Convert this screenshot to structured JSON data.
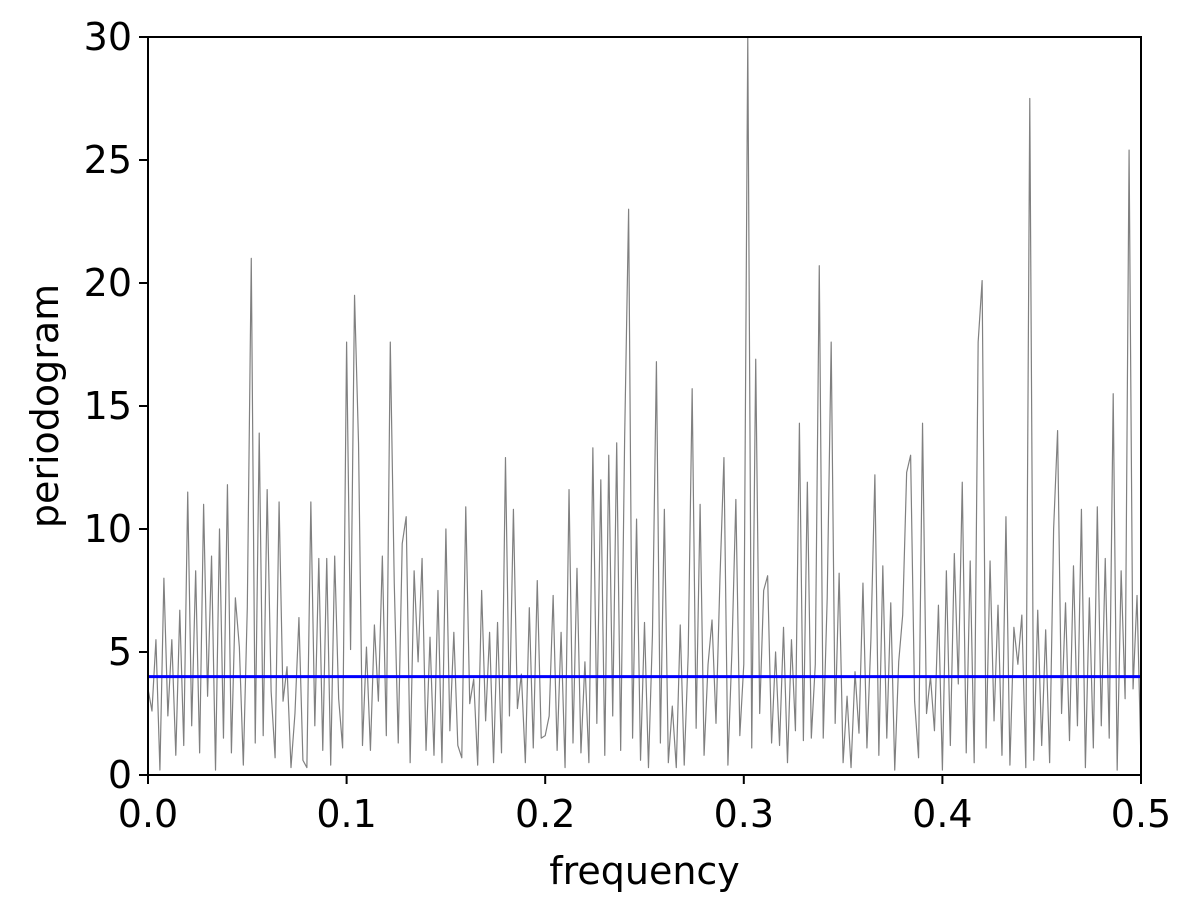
{
  "chart_data": {
    "type": "line",
    "x_label": "frequency",
    "y_label": "periodogram",
    "xlim": [
      0,
      0.5
    ],
    "ylim": [
      0,
      30
    ],
    "xticks": [
      {
        "value": 0,
        "label": "0.0"
      },
      0.1,
      0.2,
      0.3,
      0.4,
      0.5
    ],
    "yticks": [
      0,
      5,
      10,
      15,
      20,
      25,
      30
    ],
    "hline": {
      "value": 4,
      "color": "#0000ff"
    },
    "series": [
      {
        "color": "#808080",
        "x": [
          0,
          0.002,
          0.004,
          0.006,
          0.008,
          0.01,
          0.012,
          0.014,
          0.016,
          0.018,
          0.02,
          0.022,
          0.024,
          0.026,
          0.028,
          0.03,
          0.032,
          0.034,
          0.036,
          0.038,
          0.04,
          0.042,
          0.044,
          0.046,
          0.048,
          0.05,
          0.052,
          0.054,
          0.056,
          0.058,
          0.06,
          0.062,
          0.064,
          0.066,
          0.068,
          0.07,
          0.072,
          0.074,
          0.076,
          0.078,
          0.08,
          0.082,
          0.084,
          0.086,
          0.088,
          0.09,
          0.092,
          0.094,
          0.096,
          0.098,
          0.1,
          0.102,
          0.104,
          0.106,
          0.108,
          0.11,
          0.112,
          0.114,
          0.116,
          0.118,
          0.12,
          0.122,
          0.124,
          0.126,
          0.128,
          0.13,
          0.132,
          0.134,
          0.136,
          0.138,
          0.14,
          0.142,
          0.144,
          0.146,
          0.148,
          0.15,
          0.152,
          0.154,
          0.156,
          0.158,
          0.16,
          0.162,
          0.164,
          0.166,
          0.168,
          0.17,
          0.172,
          0.174,
          0.176,
          0.178,
          0.18,
          0.182,
          0.184,
          0.186,
          0.188,
          0.19,
          0.192,
          0.194,
          0.196,
          0.198,
          0.2,
          0.202,
          0.204,
          0.206,
          0.208,
          0.21,
          0.212,
          0.214,
          0.216,
          0.218,
          0.22,
          0.222,
          0.224,
          0.226,
          0.228,
          0.23,
          0.232,
          0.234,
          0.236,
          0.238,
          0.24,
          0.242,
          0.244,
          0.246,
          0.248,
          0.25,
          0.252,
          0.254,
          0.256,
          0.258,
          0.26,
          0.262,
          0.264,
          0.266,
          0.268,
          0.27,
          0.272,
          0.274,
          0.276,
          0.278,
          0.28,
          0.282,
          0.284,
          0.286,
          0.288,
          0.29,
          0.292,
          0.294,
          0.296,
          0.298,
          0.3,
          0.302,
          0.304,
          0.306,
          0.308,
          0.31,
          0.312,
          0.314,
          0.316,
          0.318,
          0.32,
          0.322,
          0.324,
          0.326,
          0.328,
          0.33,
          0.332,
          0.334,
          0.336,
          0.338,
          0.34,
          0.342,
          0.344,
          0.346,
          0.348,
          0.35,
          0.352,
          0.354,
          0.356,
          0.358,
          0.36,
          0.362,
          0.364,
          0.366,
          0.368,
          0.37,
          0.372,
          0.374,
          0.376,
          0.378,
          0.38,
          0.382,
          0.384,
          0.386,
          0.388,
          0.39,
          0.392,
          0.394,
          0.396,
          0.398,
          0.4,
          0.402,
          0.404,
          0.406,
          0.408,
          0.41,
          0.412,
          0.414,
          0.416,
          0.418,
          0.42,
          0.422,
          0.424,
          0.426,
          0.428,
          0.43,
          0.432,
          0.434,
          0.436,
          0.438,
          0.44,
          0.442,
          0.444,
          0.446,
          0.448,
          0.45,
          0.452,
          0.454,
          0.456,
          0.458,
          0.46,
          0.462,
          0.464,
          0.466,
          0.468,
          0.47,
          0.472,
          0.474,
          0.476,
          0.478,
          0.48,
          0.482,
          0.484,
          0.486,
          0.488,
          0.49,
          0.492,
          0.494,
          0.496,
          0.498,
          0.5
        ],
        "values": [
          3.5,
          2.6,
          5.5,
          0.2,
          8.0,
          2.4,
          5.5,
          0.8,
          6.7,
          1.2,
          11.5,
          2.0,
          8.3,
          0.9,
          11.0,
          3.2,
          8.9,
          0.2,
          10.0,
          1.5,
          11.8,
          0.9,
          7.2,
          5.2,
          0.4,
          6.8,
          21.0,
          1.3,
          13.9,
          1.6,
          11.6,
          3.4,
          0.7,
          11.1,
          3.0,
          4.4,
          0.3,
          2.5,
          6.4,
          0.6,
          0.3,
          11.1,
          2.0,
          8.8,
          1.0,
          8.8,
          0.4,
          8.9,
          3.1,
          1.1,
          17.6,
          5.1,
          19.5,
          13.5,
          1.2,
          5.2,
          1.0,
          6.1,
          3.0,
          8.9,
          1.6,
          17.6,
          7.8,
          1.3,
          9.4,
          10.5,
          0.5,
          8.3,
          4.6,
          8.8,
          1.0,
          5.6,
          0.8,
          7.5,
          0.5,
          10.0,
          1.8,
          5.8,
          1.2,
          0.7,
          10.9,
          2.9,
          3.9,
          0.4,
          7.5,
          2.2,
          5.8,
          0.5,
          6.2,
          0.9,
          12.9,
          2.4,
          10.8,
          2.7,
          4.1,
          0.5,
          6.8,
          1.1,
          7.9,
          1.5,
          1.6,
          2.4,
          7.3,
          1.0,
          5.8,
          0.3,
          11.6,
          1.3,
          8.4,
          0.9,
          4.6,
          0.5,
          13.3,
          2.1,
          12.0,
          0.8,
          13.0,
          2.4,
          13.5,
          1.0,
          13.7,
          23.0,
          1.5,
          10.4,
          0.6,
          6.2,
          0.3,
          5.7,
          16.8,
          1.3,
          10.8,
          0.5,
          2.8,
          0.3,
          6.1,
          0.4,
          4.9,
          15.7,
          1.9,
          11.0,
          0.8,
          4.5,
          6.3,
          2.1,
          8.0,
          12.9,
          0.4,
          5.0,
          11.2,
          1.6,
          4.5,
          30.0,
          1.1,
          16.9,
          2.5,
          7.5,
          8.1,
          1.3,
          5.0,
          1.2,
          6.0,
          0.5,
          5.5,
          1.8,
          14.3,
          1.4,
          11.9,
          1.5,
          4.5,
          20.7,
          1.5,
          7.2,
          17.6,
          2.1,
          8.2,
          0.5,
          3.2,
          0.3,
          4.2,
          1.7,
          7.8,
          1.1,
          5.5,
          12.2,
          0.8,
          8.5,
          1.5,
          7.0,
          0.2,
          4.6,
          6.5,
          12.3,
          13.0,
          3.0,
          0.7,
          14.3,
          2.5,
          4.0,
          1.8,
          6.9,
          0.2,
          8.3,
          1.2,
          9.0,
          3.7,
          11.9,
          0.9,
          8.7,
          0.5,
          17.6,
          20.1,
          1.1,
          8.7,
          2.2,
          6.9,
          0.8,
          10.5,
          0.4,
          6.0,
          4.5,
          6.5,
          0.3,
          27.5,
          0.6,
          6.7,
          1.2,
          5.9,
          0.5,
          10.0,
          14.0,
          2.5,
          7.0,
          1.4,
          8.5,
          2.0,
          10.8,
          0.3,
          7.2,
          1.1,
          10.9,
          2.0,
          8.8,
          1.5,
          15.5,
          0.2,
          8.3,
          3.1,
          25.4,
          3.5,
          7.3,
          0.5
        ]
      }
    ]
  }
}
